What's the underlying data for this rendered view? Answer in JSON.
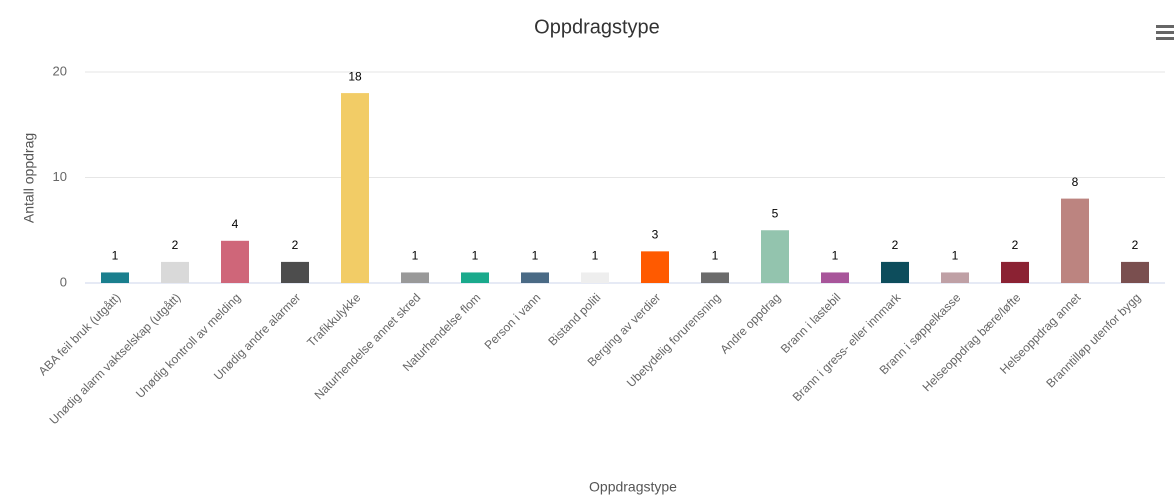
{
  "chart_data": {
    "type": "bar",
    "title": "Oppdragstype",
    "x_label": "Oppdragstype",
    "y_label": "Antall oppdrag",
    "categories": [
      "ABA feil bruk (utgått)",
      "Unødig alarm vaktselskap (utgått)",
      "Unødig kontroll av melding",
      "Unødig andre alarmer",
      "Trafikkulykke",
      "Naturhendelse annet skred",
      "Naturhendelse flom",
      "Person i vann",
      "Bistand politi",
      "Berging av verdier",
      "Ubetydelig forurensning",
      "Andre oppdrag",
      "Brann i lastebil",
      "Brann i gress- eller innmark",
      "Brann i søppelkasse",
      "Helseoppdrag bære/løfte",
      "Helseoppdrag annet",
      "Branntilløp utenfor bygg"
    ],
    "values": [
      1,
      2,
      4,
      2,
      18,
      1,
      1,
      1,
      1,
      3,
      1,
      5,
      1,
      2,
      1,
      2,
      8,
      2
    ],
    "colors": [
      "#1a7f8e",
      "#d9d9d9",
      "#cf6679",
      "#4d4d4d",
      "#f2cc66",
      "#999999",
      "#1aaa8c",
      "#4a6a85",
      "#eeeeee",
      "#ff5a00",
      "#6b6b6b",
      "#93c4ae",
      "#a8559a",
      "#0d4d5c",
      "#bfa0a5",
      "#8b2233",
      "#bc8480",
      "#7a4f4f"
    ],
    "ylim": [
      0,
      20
    ],
    "yticks": [
      0,
      10,
      20
    ],
    "grid": true
  }
}
